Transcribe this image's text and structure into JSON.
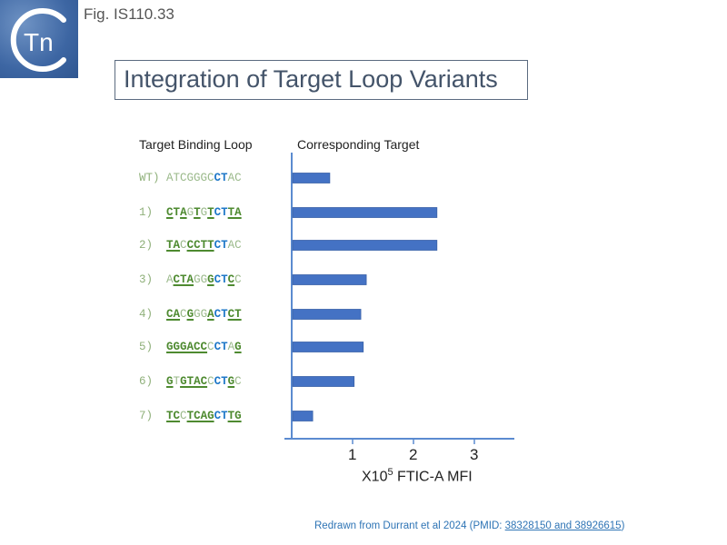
{
  "figure_label": "Fig. IS110.33",
  "logo": {
    "text": "Tn",
    "colors": {
      "background": "#3d66a3",
      "glyph": "#ffffff"
    }
  },
  "title": "Integration of Target Loop Variants",
  "headers": {
    "left": "Target Binding Loop",
    "right": "Corresponding Target"
  },
  "colors": {
    "bar": "#4472c4",
    "axis": "#5b8bd0",
    "plain": "#9ab98a",
    "bold": "#4e8a30",
    "blue": "#1f78c8"
  },
  "chart_data": {
    "type": "bar",
    "orientation": "horizontal",
    "categories": [
      "WT)",
      "1)",
      "2)",
      "3)",
      "4)",
      "5)",
      "6)",
      "7)"
    ],
    "values": [
      0.61,
      2.37,
      2.37,
      1.21,
      1.12,
      1.16,
      1.01,
      0.33
    ],
    "xticks": [
      1,
      2,
      3
    ],
    "xlim": [
      0,
      3.6
    ],
    "xlabel": {
      "prefix": "X10",
      "sup": "5",
      "suffix": " FTIC-A MFI"
    },
    "grid": false
  },
  "sequences": [
    {
      "label": "WT)",
      "segments": [
        [
          "ATCGGGC",
          "plain"
        ],
        [
          "CT",
          "blue"
        ],
        [
          "AC",
          "plain"
        ]
      ]
    },
    {
      "label": "1) ",
      "segments": [
        [
          "C",
          "under"
        ],
        [
          "T",
          "bold"
        ],
        [
          "A",
          "under"
        ],
        [
          "G",
          "plain"
        ],
        [
          "T",
          "under"
        ],
        [
          "G",
          "plain"
        ],
        [
          "T",
          "under"
        ],
        [
          "CT",
          "blue"
        ],
        [
          "TA",
          "under"
        ]
      ]
    },
    {
      "label": "2) ",
      "segments": [
        [
          "TA",
          "under"
        ],
        [
          "C",
          "plain"
        ],
        [
          "CCTT",
          "under"
        ],
        [
          "CT",
          "blue"
        ],
        [
          "AC",
          "plain"
        ]
      ]
    },
    {
      "label": "3) ",
      "segments": [
        [
          "A",
          "plain"
        ],
        [
          "CTA",
          "under"
        ],
        [
          "GG",
          "plain"
        ],
        [
          "G",
          "under"
        ],
        [
          "CT",
          "blue"
        ],
        [
          "C",
          "under"
        ],
        [
          "C",
          "plain"
        ]
      ]
    },
    {
      "label": "4) ",
      "segments": [
        [
          "CA",
          "under"
        ],
        [
          "C",
          "plain"
        ],
        [
          "G",
          "under"
        ],
        [
          "GG",
          "plain"
        ],
        [
          "A",
          "under"
        ],
        [
          "CT",
          "blue"
        ],
        [
          "CT",
          "under"
        ]
      ]
    },
    {
      "label": "5) ",
      "segments": [
        [
          "GGGACC",
          "under"
        ],
        [
          "C",
          "plain"
        ],
        [
          "CT",
          "blue"
        ],
        [
          "A",
          "plain"
        ],
        [
          "G",
          "under"
        ]
      ]
    },
    {
      "label": "6) ",
      "segments": [
        [
          "G",
          "under"
        ],
        [
          "T",
          "plain"
        ],
        [
          "GTAC",
          "under"
        ],
        [
          "C",
          "plain"
        ],
        [
          "CT",
          "blue"
        ],
        [
          "G",
          "under"
        ],
        [
          "C",
          "plain"
        ]
      ]
    },
    {
      "label": "7) ",
      "segments": [
        [
          "TC",
          "under"
        ],
        [
          "C",
          "plain"
        ],
        [
          "TCAG",
          "under"
        ],
        [
          "CT",
          "blue"
        ],
        [
          "TG",
          "under"
        ]
      ]
    }
  ],
  "footer": {
    "text": "Redrawn from Durrant et al 2024 (PMID: ",
    "link": "38328150 and 38926615",
    "close": ")"
  }
}
